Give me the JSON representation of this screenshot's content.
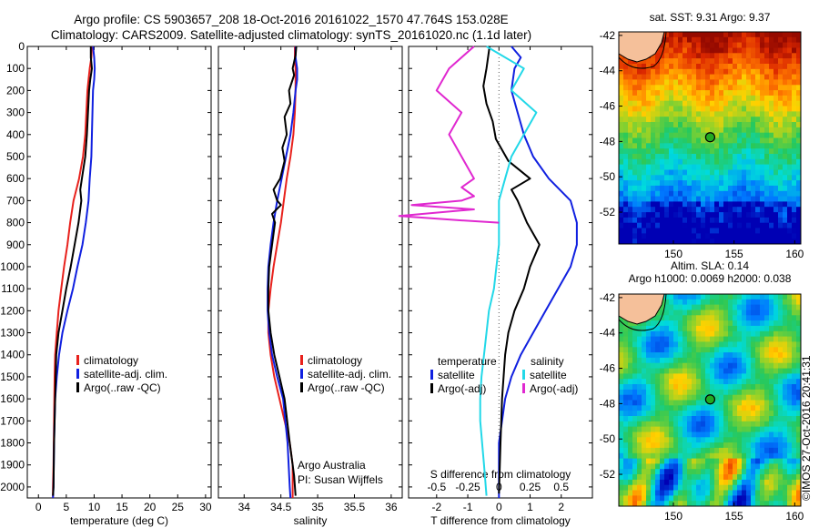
{
  "header": {
    "title_line1": "Argo profile: CS 5903657_208 18-Oct-2016 20161022_1570 47.764S 153.028E",
    "title_line2": "Climatology: CARS2009. Satellite-adjusted climatology: synTS_20161020.nc (1.1d later)"
  },
  "colors": {
    "climatology": "#e8211c",
    "satellite": "#1020e0",
    "argo": "#000000",
    "sal_satellite": "#22d8e8",
    "sal_argo": "#e028d0"
  },
  "depth_axis": {
    "ticks": [
      0,
      100,
      200,
      300,
      400,
      500,
      600,
      700,
      800,
      900,
      1000,
      1100,
      1200,
      1300,
      1400,
      1500,
      1600,
      1700,
      1800,
      1900,
      2000
    ],
    "range": [
      0,
      2050
    ],
    "inverted": true
  },
  "chart_data": [
    {
      "type": "line",
      "xlabel": "temperature (deg C)",
      "xlim": [
        -2,
        31
      ],
      "xticks": [
        0,
        5,
        10,
        15,
        20,
        25,
        30
      ],
      "legend": [
        "climatology",
        "satellite-adj. clim.",
        "Argo(..raw -QC)"
      ],
      "series": [
        {
          "name": "climatology",
          "color": "#e8211c",
          "x": [
            9.6,
            9.5,
            9.2,
            9.0,
            8.8,
            8.6,
            8.4,
            8.0,
            7.3,
            6.8,
            6.3,
            5.7,
            5.2,
            4.6,
            4.1,
            3.6,
            3.3,
            3.0,
            2.9,
            2.8,
            2.7,
            2.6,
            2.6
          ],
          "y": [
            0,
            50,
            100,
            150,
            200,
            300,
            400,
            500,
            600,
            650,
            700,
            800,
            900,
            1000,
            1100,
            1200,
            1300,
            1400,
            1500,
            1700,
            1900,
            2000,
            2050
          ]
        },
        {
          "name": "satellite-adj. clim.",
          "color": "#1020e0",
          "x": [
            9.8,
            10.0,
            10.1,
            10.0,
            9.8,
            9.7,
            9.6,
            9.5,
            9.2,
            9.0,
            8.5,
            7.9,
            7.0,
            6.2,
            5.2,
            4.3,
            3.7,
            3.3,
            3.0,
            2.8,
            2.7,
            2.6
          ],
          "y": [
            0,
            50,
            100,
            150,
            200,
            300,
            400,
            500,
            600,
            700,
            800,
            900,
            1000,
            1100,
            1200,
            1300,
            1400,
            1500,
            1600,
            1800,
            2000,
            2050
          ]
        },
        {
          "name": "Argo(..raw -QC)",
          "color": "#000000",
          "x": [
            9.4,
            9.4,
            9.6,
            9.3,
            9.1,
            8.9,
            8.7,
            8.4,
            7.8,
            7.5,
            7.7,
            7.2,
            6.5,
            5.8,
            5.0,
            4.3,
            3.6,
            3.2,
            3.0,
            2.8,
            2.7,
            2.6
          ],
          "y": [
            0,
            50,
            100,
            150,
            200,
            300,
            400,
            500,
            600,
            650,
            700,
            800,
            900,
            1000,
            1100,
            1200,
            1300,
            1400,
            1600,
            1800,
            2000,
            2040
          ]
        }
      ]
    },
    {
      "type": "line",
      "xlabel": "salinity",
      "xlim": [
        33.65,
        36.15
      ],
      "xticks": [
        34,
        34.5,
        35,
        35.5,
        36
      ],
      "legend": [
        "climatology",
        "satellite-adj. clim.",
        "Argo(..raw -QC)"
      ],
      "annotation": [
        "Argo Australia",
        "PI: Susan Wijffels"
      ],
      "series": [
        {
          "name": "climatology",
          "color": "#e8211c",
          "x": [
            34.69,
            34.69,
            34.7,
            34.7,
            34.7,
            34.69,
            34.67,
            34.63,
            34.58,
            34.54,
            34.5,
            34.45,
            34.4,
            34.36,
            34.33,
            34.33,
            34.36,
            34.41,
            34.48,
            34.55,
            34.62,
            34.66,
            34.66
          ],
          "y": [
            0,
            50,
            100,
            150,
            200,
            300,
            400,
            500,
            600,
            700,
            800,
            900,
            1000,
            1100,
            1200,
            1300,
            1400,
            1500,
            1600,
            1700,
            1800,
            1900,
            2050
          ]
        },
        {
          "name": "satellite-adj. clim.",
          "color": "#1020e0",
          "x": [
            34.7,
            34.7,
            34.72,
            34.72,
            34.7,
            34.67,
            34.63,
            34.57,
            34.51,
            34.45,
            34.4,
            34.36,
            34.33,
            34.32,
            34.32,
            34.34,
            34.38,
            34.45,
            34.53,
            34.59,
            34.62,
            34.63
          ],
          "y": [
            0,
            50,
            100,
            150,
            200,
            300,
            400,
            500,
            600,
            700,
            800,
            900,
            1000,
            1100,
            1200,
            1300,
            1400,
            1500,
            1600,
            1800,
            2000,
            2050
          ]
        },
        {
          "name": "Argo(..raw -QC)",
          "color": "#000000",
          "x": [
            34.71,
            34.7,
            34.66,
            34.68,
            34.61,
            34.63,
            34.55,
            34.58,
            34.52,
            34.55,
            34.49,
            34.4,
            34.45,
            34.5,
            34.38,
            34.42,
            34.38,
            34.34,
            34.33,
            34.33,
            34.36,
            34.41,
            34.48,
            34.55,
            34.62,
            34.68,
            34.7
          ],
          "y": [
            0,
            40,
            100,
            130,
            200,
            260,
            320,
            400,
            460,
            520,
            600,
            650,
            700,
            720,
            760,
            800,
            900,
            1000,
            1100,
            1200,
            1300,
            1400,
            1500,
            1600,
            1800,
            1950,
            2040
          ]
        }
      ]
    },
    {
      "type": "line",
      "xlabel": "T difference from climatology",
      "xlabel2": "S difference from climatology",
      "xlim": [
        -2.9,
        3.0
      ],
      "xticks": [
        -2,
        -1,
        0,
        1,
        2
      ],
      "xticks2": [
        -0.5,
        -0.25,
        0,
        0.25,
        0.5
      ],
      "xticks2_labels": [
        "-0.5",
        "-0.25",
        "0",
        "0.25",
        "0.5"
      ],
      "legend_temperature": [
        "temperature",
        "satellite",
        "Argo(-adj)"
      ],
      "legend_salinity": [
        "salinity",
        "satellite",
        "Argo(-adj)"
      ],
      "series": [
        {
          "name": "satellite",
          "color": "#1020e0",
          "x": [
            0.4,
            0.7,
            0.5,
            0.4,
            0.6,
            0.8,
            1.1,
            1.6,
            2.3,
            2.5,
            2.5,
            2.3,
            1.9,
            1.5,
            1.1,
            0.7,
            0.4,
            0.2,
            0.1,
            0.0,
            0.0,
            0.0
          ],
          "y": [
            0,
            50,
            100,
            200,
            300,
            400,
            500,
            600,
            700,
            800,
            900,
            1000,
            1100,
            1200,
            1300,
            1400,
            1500,
            1600,
            1700,
            1800,
            2000,
            2050
          ]
        },
        {
          "name": "Argo(-adj)",
          "color": "#000000",
          "x": [
            -0.3,
            -0.4,
            -0.5,
            -0.4,
            -0.2,
            -0.1,
            0.3,
            1.0,
            0.4,
            0.6,
            0.9,
            1.3,
            1.0,
            0.8,
            0.5,
            0.3,
            0.2,
            0.1,
            0.05,
            0.0
          ],
          "y": [
            0,
            100,
            180,
            260,
            340,
            420,
            520,
            600,
            650,
            700,
            800,
            900,
            1000,
            1100,
            1200,
            1300,
            1400,
            1600,
            1800,
            2030
          ]
        },
        {
          "name": "salinity satellite",
          "color": "#22d8e8",
          "x": [
            -0.1,
            0.2,
            0.1,
            0.3,
            0.2,
            0.1,
            0.05,
            0.0,
            0.0,
            0.0,
            -0.02,
            -0.04,
            -0.08,
            -0.1,
            -0.12,
            -0.14,
            -0.15,
            -0.15,
            -0.12,
            -0.1
          ],
          "y": [
            0,
            100,
            200,
            300,
            400,
            500,
            600,
            700,
            800,
            900,
            1000,
            1100,
            1200,
            1300,
            1400,
            1500,
            1600,
            1700,
            1900,
            2040
          ]
        },
        {
          "name": "salinity Argo(-adj)",
          "color": "#e028d0",
          "x": [
            -0.2,
            -0.4,
            -0.5,
            -0.3,
            -0.4,
            -0.3,
            -0.2,
            -0.3,
            -0.2,
            -0.3,
            -0.7,
            -0.2,
            -0.8,
            -0.3,
            0.0
          ],
          "y": [
            0,
            100,
            200,
            300,
            400,
            500,
            600,
            640,
            680,
            700,
            720,
            740,
            770,
            790,
            800
          ]
        }
      ]
    },
    {
      "type": "heatmap",
      "title": "sat. SST: 9.31  Argo: 9.37",
      "xlim": [
        145.5,
        160.5
      ],
      "ylim": [
        -53.8,
        -41.8
      ],
      "xticks": [
        150,
        155,
        160
      ],
      "yticks": [
        -42,
        -44,
        -46,
        -48,
        -50,
        -52
      ],
      "marker": {
        "lon": 153.03,
        "lat": -47.76
      }
    },
    {
      "type": "heatmap",
      "title_line1": "Altim. SLA: 0.14",
      "title_line2": "Argo h1000: 0.0069 h2000: 0.038",
      "xlim": [
        145.5,
        160.5
      ],
      "ylim": [
        -53.8,
        -41.8
      ],
      "xticks": [
        150,
        155,
        160
      ],
      "yticks": [
        -42,
        -44,
        -46,
        -48,
        -50,
        -52
      ],
      "marker": {
        "lon": 153.03,
        "lat": -47.76
      }
    }
  ],
  "credit": "©IMOS 27-Oct-2016 20:41:31"
}
